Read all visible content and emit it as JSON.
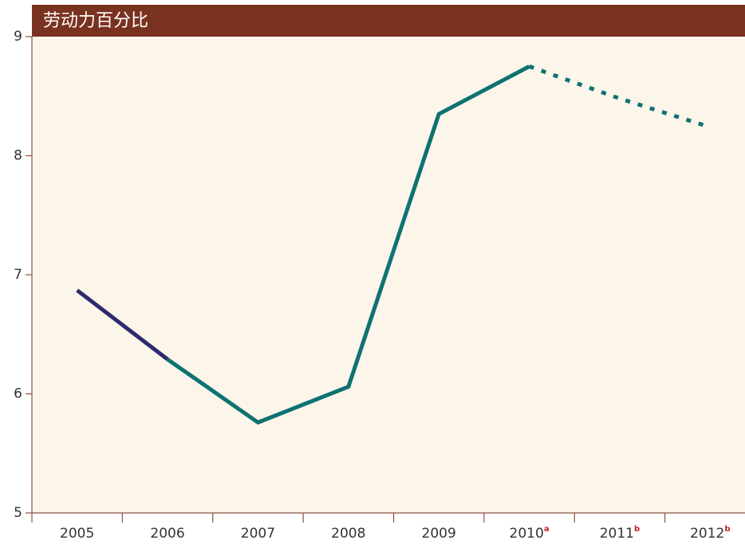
{
  "chart_data": {
    "type": "line",
    "title": "劳动力百分比",
    "categories": [
      "2005",
      "2006",
      "2007",
      "2008",
      "2009",
      "2010",
      "2011",
      "2012"
    ],
    "category_notes": [
      null,
      null,
      null,
      null,
      null,
      "a",
      "b",
      "b"
    ],
    "series": [
      {
        "color": "#2e2a70",
        "style": "solid",
        "values": [
          6.87,
          6.29,
          null,
          null,
          null,
          null,
          null,
          null
        ]
      },
      {
        "color": "#0e7272",
        "style": "solid",
        "values": [
          null,
          6.29,
          5.76,
          6.06,
          8.35,
          8.75,
          null,
          null
        ]
      },
      {
        "color": "#0e7272",
        "style": "dotted",
        "values": [
          null,
          null,
          null,
          null,
          null,
          8.75,
          8.48,
          8.24
        ]
      }
    ],
    "ylim": [
      5,
      9
    ],
    "yticks": [
      5,
      6,
      7,
      8,
      9
    ]
  }
}
